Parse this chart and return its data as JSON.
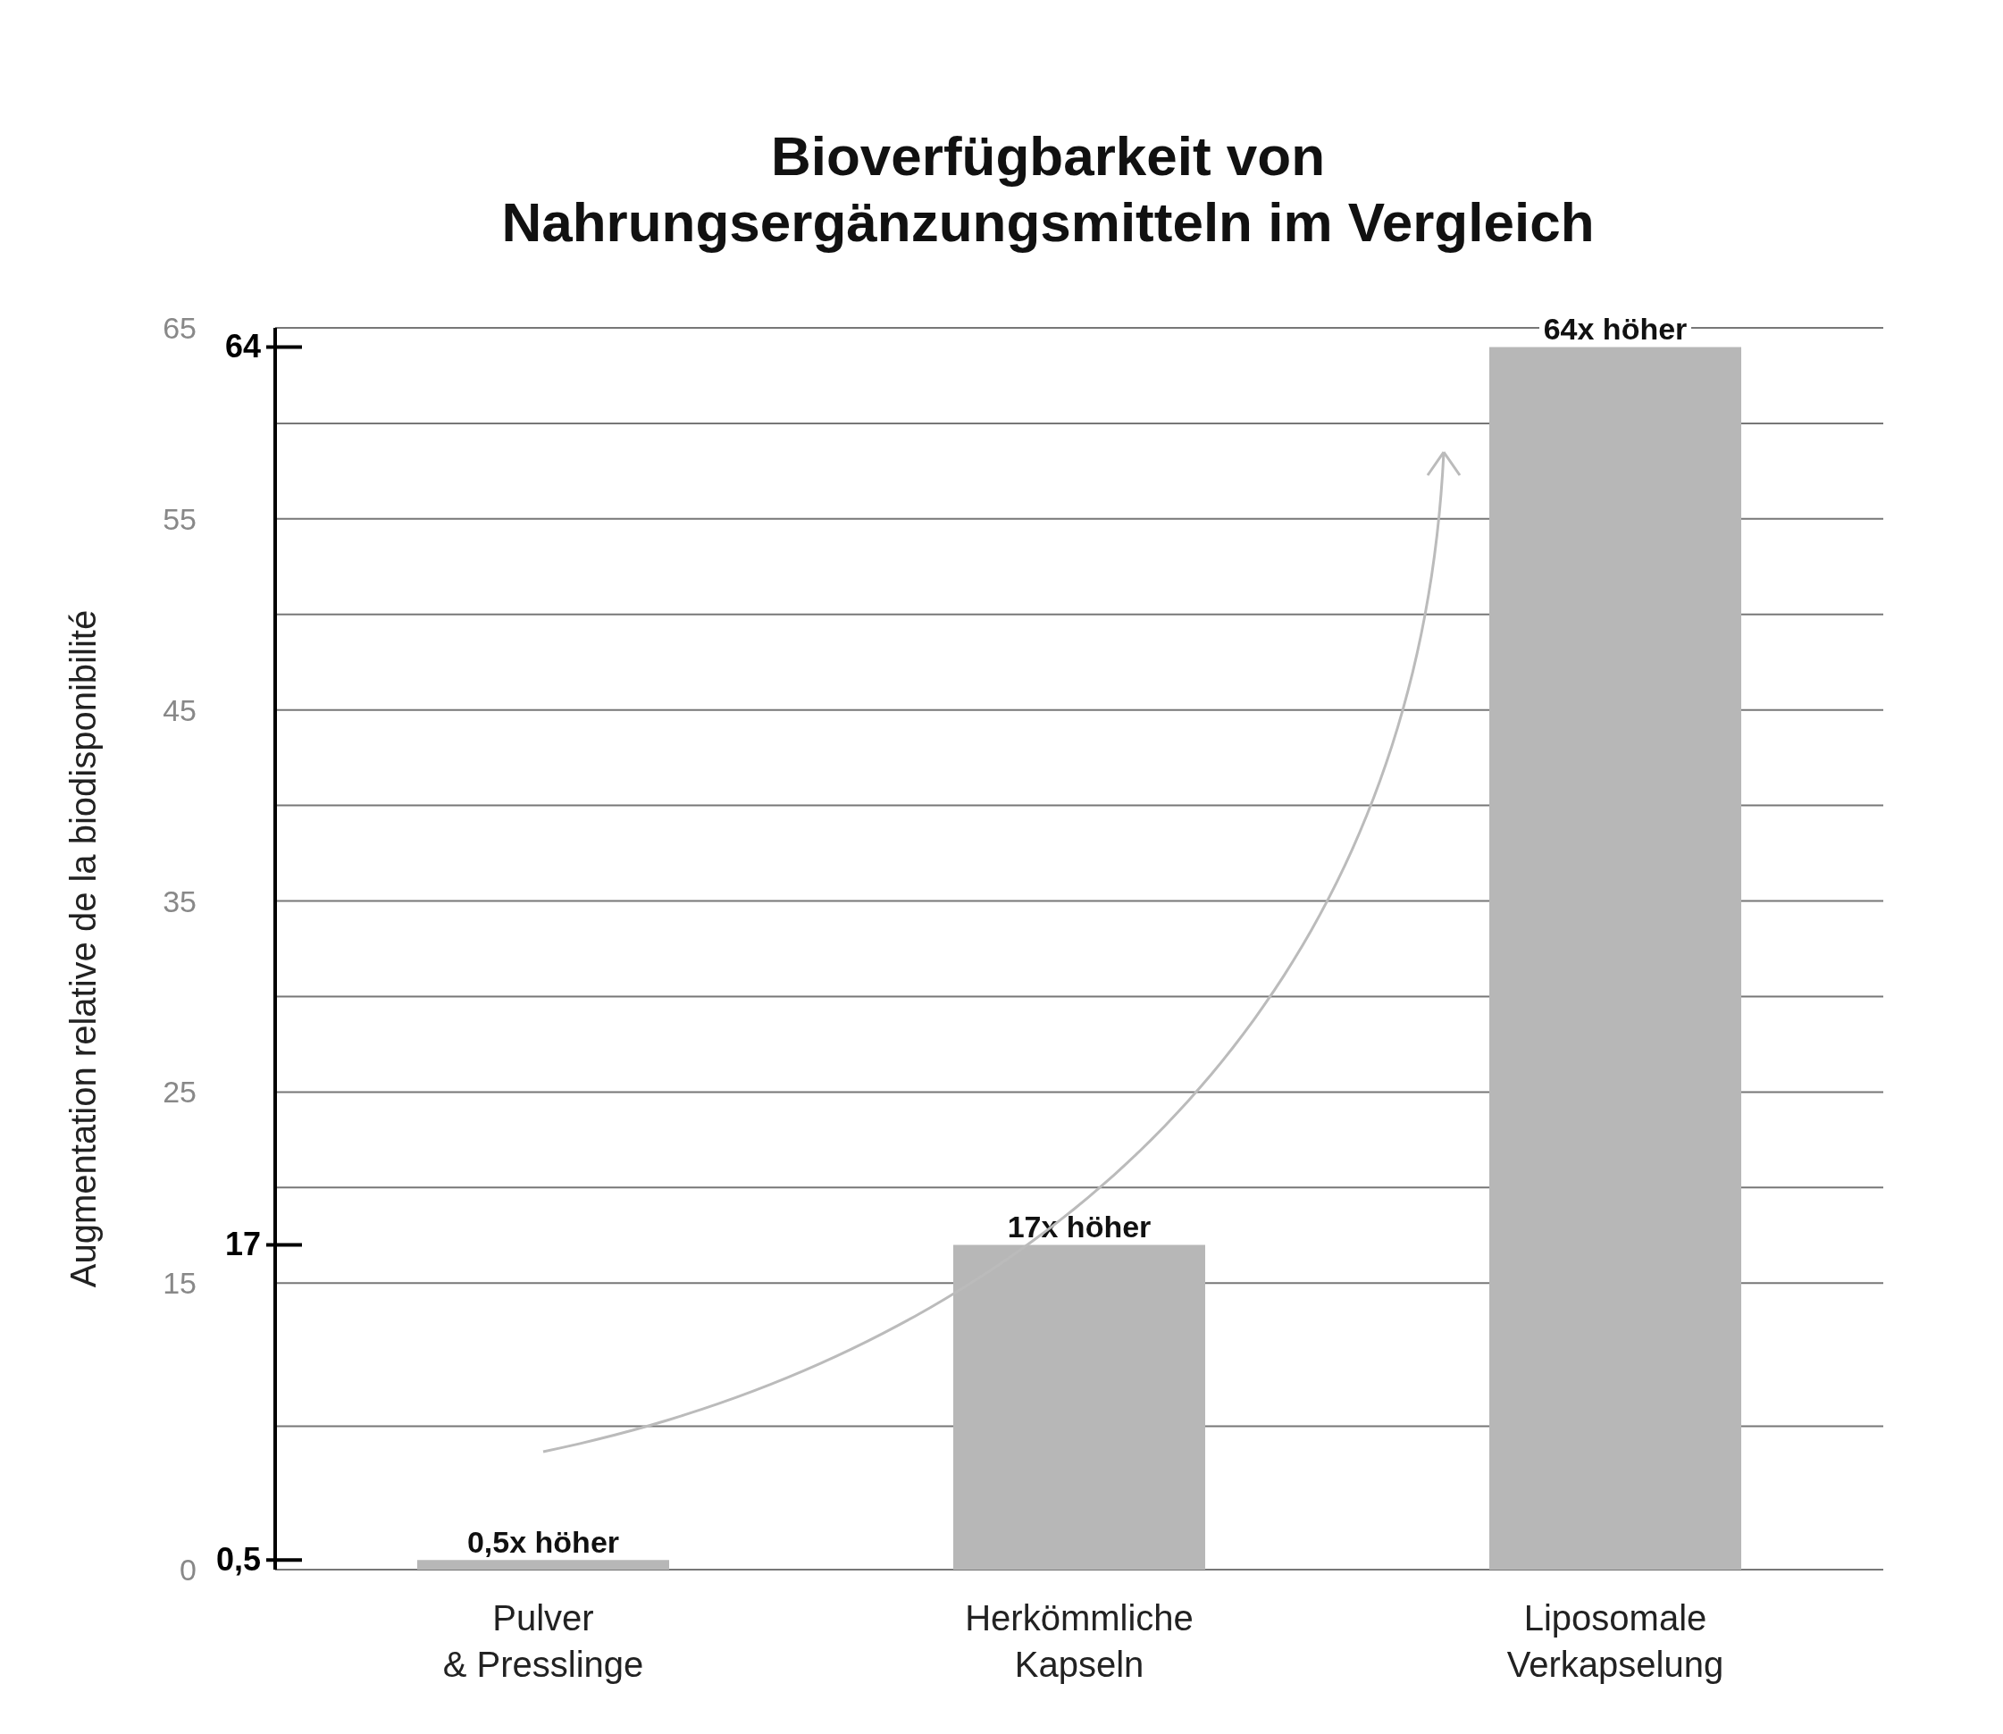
{
  "chart_data": {
    "type": "bar",
    "title": "Bioverfügbarkeit von Nahrungsergänzungsmitteln im Vergleich",
    "ylabel": "Augmentation relative de la biodisponibilité",
    "categories": [
      "Pulver\n& Presslinge",
      "Herkömmliche\nKapseln",
      "Liposomale\nVerkapselung"
    ],
    "values": [
      0.5,
      17,
      64
    ],
    "color": "#b7b7b7",
    "value_labels": [
      "0,5x höher",
      "17x höher",
      "64x höher"
    ],
    "ylim": [
      0,
      65
    ],
    "yticks": [
      0,
      {
        "value": 7.5,
        "label": null
      },
      15,
      {
        "value": 20,
        "label": null
      },
      25,
      {
        "value": 30,
        "label": null
      },
      35,
      {
        "value": 40,
        "label": null
      },
      45,
      {
        "value": 50,
        "label": null
      },
      55,
      {
        "value": 60,
        "label": null
      },
      65
    ],
    "ref_lines": [
      {
        "axis": "y",
        "value": 0.5,
        "label": "0,5",
        "color": "#000000"
      },
      {
        "axis": "y",
        "value": 17,
        "label": "17",
        "color": "#000000"
      },
      {
        "axis": "y",
        "value": 64,
        "label": "64",
        "color": "#000000"
      }
    ],
    "grid": "y",
    "legend": false
  }
}
